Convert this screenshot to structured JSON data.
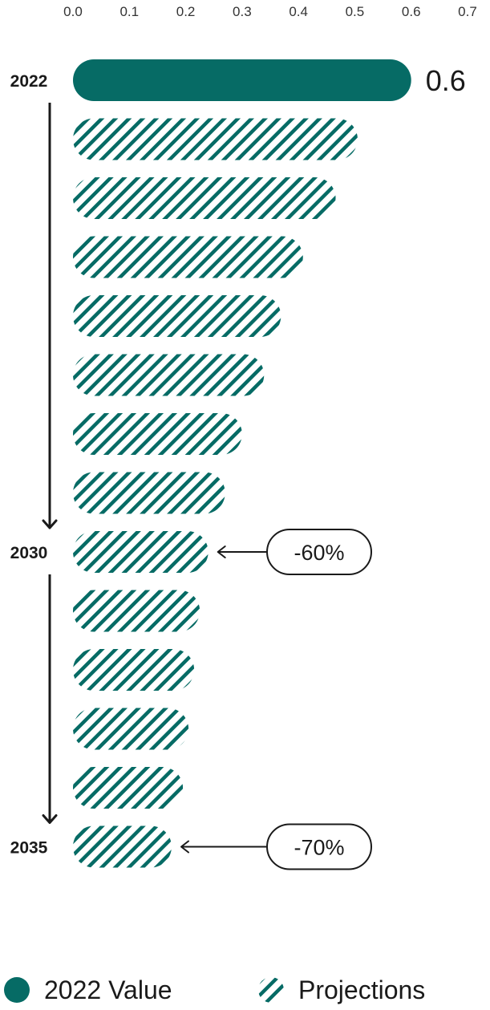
{
  "chart_data": {
    "type": "bar",
    "orientation": "horizontal",
    "xlim": [
      0.0,
      0.7
    ],
    "x_ticks": [
      "0.0",
      "0.1",
      "0.2",
      "0.3",
      "0.4",
      "0.5",
      "0.6",
      "0.7"
    ],
    "grid": false,
    "legend_position": "bottom",
    "year_labels": [
      {
        "label": "2022",
        "index": 0
      },
      {
        "label": "2030",
        "index": 8
      },
      {
        "label": "2035",
        "index": 13
      }
    ],
    "series": [
      {
        "name": "2022 Value",
        "style": "solid",
        "indices": [
          0
        ],
        "values": [
          0.6
        ],
        "value_label": "0.6"
      },
      {
        "name": "Projections",
        "style": "hatched",
        "indices": [
          1,
          2,
          3,
          4,
          5,
          6,
          7,
          8,
          9,
          10,
          11,
          12,
          13
        ],
        "values": [
          0.505,
          0.466,
          0.408,
          0.369,
          0.339,
          0.3,
          0.27,
          0.24,
          0.225,
          0.215,
          0.205,
          0.195,
          0.175
        ]
      }
    ],
    "annotations": [
      {
        "text": "-60%",
        "index": 8
      },
      {
        "text": "-70%",
        "index": 13
      }
    ]
  },
  "colors": {
    "bar": "#066b65",
    "text": "#1a1a1a",
    "arrow": "#1a1a1a",
    "background": "#ffffff"
  },
  "legend": {
    "items": [
      {
        "label": "2022 Value",
        "icon": "solid-circle-icon"
      },
      {
        "label": "Projections",
        "icon": "hatched-circle-icon"
      }
    ]
  }
}
